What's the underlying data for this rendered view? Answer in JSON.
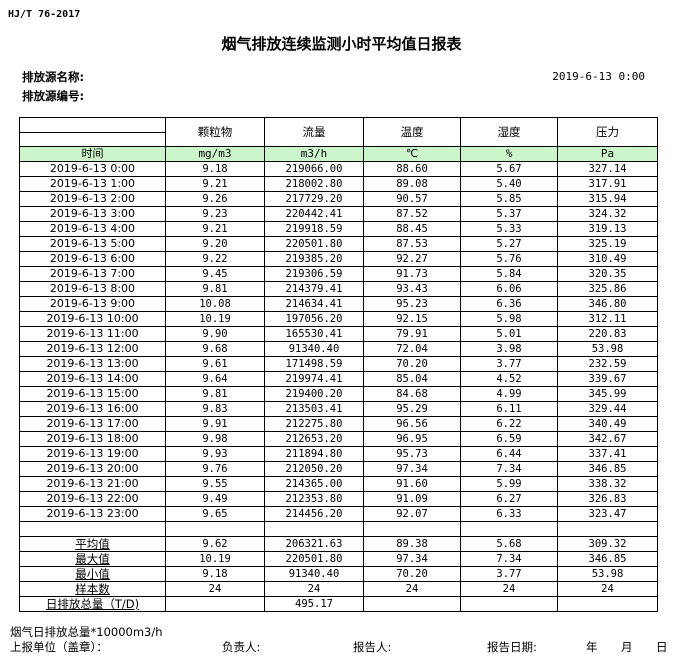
{
  "standard": "HJ/T  76-2017",
  "title": "烟气排放连续监测小时平均值日报表",
  "source_name_label": "排放源名称:",
  "source_id_label": "排放源编号:",
  "report_datetime": "2019-6-13  0:00",
  "columns": [
    {
      "name": "颗粒物",
      "unit": "mg/m3"
    },
    {
      "name": "流量",
      "unit": "m3/h"
    },
    {
      "name": "温度",
      "unit": "℃"
    },
    {
      "name": "湿度",
      "unit": "%"
    },
    {
      "name": "压力",
      "unit": "Pa"
    }
  ],
  "time_header": "时间",
  "rows": [
    [
      "2019-6-13 0:00",
      "9.18",
      "219066.00",
      "88.60",
      "5.67",
      "327.14"
    ],
    [
      "2019-6-13 1:00",
      "9.21",
      "218002.80",
      "89.08",
      "5.40",
      "317.91"
    ],
    [
      "2019-6-13 2:00",
      "9.26",
      "217729.20",
      "90.57",
      "5.85",
      "315.94"
    ],
    [
      "2019-6-13 3:00",
      "9.23",
      "220442.41",
      "87.52",
      "5.37",
      "324.32"
    ],
    [
      "2019-6-13 4:00",
      "9.21",
      "219918.59",
      "88.45",
      "5.33",
      "319.13"
    ],
    [
      "2019-6-13 5:00",
      "9.20",
      "220501.80",
      "87.53",
      "5.27",
      "325.19"
    ],
    [
      "2019-6-13 6:00",
      "9.22",
      "219385.20",
      "92.27",
      "5.76",
      "310.49"
    ],
    [
      "2019-6-13 7:00",
      "9.45",
      "219306.59",
      "91.73",
      "5.84",
      "320.35"
    ],
    [
      "2019-6-13 8:00",
      "9.81",
      "214379.41",
      "93.43",
      "6.06",
      "325.86"
    ],
    [
      "2019-6-13 9:00",
      "10.08",
      "214634.41",
      "95.23",
      "6.36",
      "346.80"
    ],
    [
      "2019-6-13 10:00",
      "10.19",
      "197056.20",
      "92.15",
      "5.98",
      "312.11"
    ],
    [
      "2019-6-13 11:00",
      "9.90",
      "165530.41",
      "79.91",
      "5.01",
      "220.83"
    ],
    [
      "2019-6-13 12:00",
      "9.68",
      "91340.40",
      "72.04",
      "3.98",
      "53.98"
    ],
    [
      "2019-6-13 13:00",
      "9.61",
      "171498.59",
      "70.20",
      "3.77",
      "232.59"
    ],
    [
      "2019-6-13 14:00",
      "9.64",
      "219974.41",
      "85.04",
      "4.52",
      "339.67"
    ],
    [
      "2019-6-13 15:00",
      "9.81",
      "219400.20",
      "84.68",
      "4.99",
      "345.99"
    ],
    [
      "2019-6-13 16:00",
      "9.83",
      "213503.41",
      "95.29",
      "6.11",
      "329.44"
    ],
    [
      "2019-6-13 17:00",
      "9.91",
      "212275.80",
      "96.56",
      "6.22",
      "340.49"
    ],
    [
      "2019-6-13 18:00",
      "9.98",
      "212653.20",
      "96.95",
      "6.59",
      "342.67"
    ],
    [
      "2019-6-13 19:00",
      "9.93",
      "211894.80",
      "95.73",
      "6.44",
      "337.41"
    ],
    [
      "2019-6-13 20:00",
      "9.76",
      "212050.20",
      "97.34",
      "7.34",
      "346.85"
    ],
    [
      "2019-6-13 21:00",
      "9.55",
      "214365.00",
      "91.60",
      "5.99",
      "338.32"
    ],
    [
      "2019-6-13 22:00",
      "9.49",
      "212353.80",
      "91.09",
      "6.27",
      "326.83"
    ],
    [
      "2019-6-13 23:00",
      "9.65",
      "214456.20",
      "92.07",
      "6.33",
      "323.47"
    ]
  ],
  "summary": [
    [
      "平均值",
      "9.62",
      "206321.63",
      "89.38",
      "5.68",
      "309.32"
    ],
    [
      "最大值",
      "10.19",
      "220501.80",
      "97.34",
      "7.34",
      "346.85"
    ],
    [
      "最小值",
      "9.18",
      "91340.40",
      "70.20",
      "3.77",
      "53.98"
    ],
    [
      "样本数",
      "24",
      "24",
      "24",
      "24",
      "24"
    ],
    [
      "日排放总量（T/D)",
      "",
      "495.17",
      "",
      "",
      ""
    ]
  ],
  "footer": {
    "note": "烟气日排放总量*10000m3/h",
    "unit_label": "上报单位（盖章）：",
    "responsible_label": "负责人:",
    "reporter_label": "报告人:",
    "date_label": "报告日期:",
    "year": "年",
    "month": "月",
    "day": "日"
  },
  "colors": {
    "unit_row_bg": "#ccf5cc",
    "border": "#000000"
  }
}
